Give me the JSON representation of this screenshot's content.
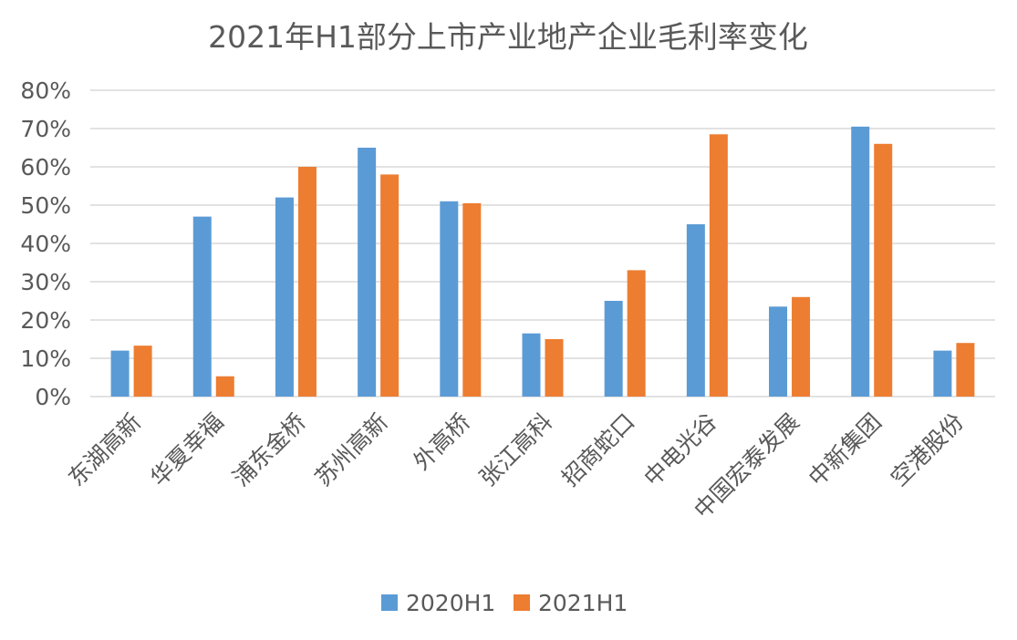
{
  "chart_data": {
    "type": "bar",
    "title": "2021年H1部分上市产业地产企业毛利率变化",
    "xlabel": "",
    "ylabel": "",
    "categories": [
      "东湖高新",
      "华夏幸福",
      "浦东金桥",
      "苏州高新",
      "外高桥",
      "张江高科",
      "招商蛇口",
      "中电光谷",
      "中国宏泰发展",
      "中新集团",
      "空港股份"
    ],
    "series": [
      {
        "name": "2020H1",
        "color": "#5B9BD5",
        "values": [
          0.12,
          0.47,
          0.52,
          0.65,
          0.51,
          0.165,
          0.25,
          0.45,
          0.235,
          0.705,
          0.12
        ]
      },
      {
        "name": "2021H1",
        "color": "#ED7D31",
        "values": [
          0.133,
          0.053,
          0.6,
          0.58,
          0.505,
          0.15,
          0.33,
          0.685,
          0.26,
          0.66,
          0.14
        ]
      }
    ],
    "ylim": [
      0,
      0.8
    ],
    "yticks": [
      "0%",
      "10%",
      "20%",
      "30%",
      "40%",
      "50%",
      "60%",
      "70%",
      "80%"
    ],
    "grid": true,
    "legend_position": "bottom"
  }
}
